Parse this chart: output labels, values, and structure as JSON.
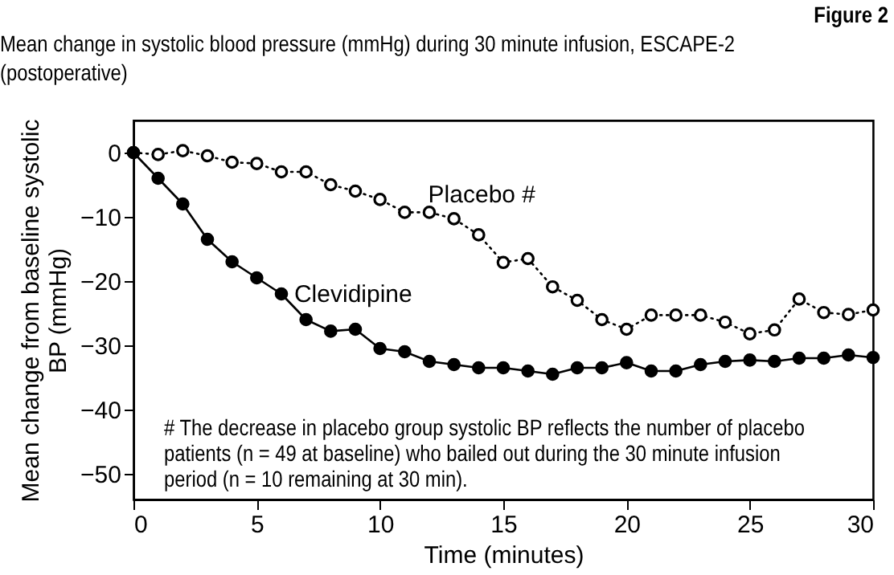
{
  "chart_data": {
    "type": "line",
    "title": "Figure 2",
    "subtitle": "Mean change in systolic blood pressure (mmHg) during 30 minute infusion, ESCAPE-2 (postoperative)",
    "xlabel": "Time (minutes)",
    "ylabel": "Mean change from baseline systolic BP (mmHg)",
    "x": [
      0,
      1,
      2,
      3,
      4,
      5,
      6,
      7,
      8,
      9,
      10,
      11,
      12,
      13,
      14,
      15,
      16,
      17,
      18,
      19,
      20,
      21,
      22,
      23,
      24,
      25,
      26,
      27,
      28,
      29,
      30
    ],
    "series": [
      {
        "name": "Placebo #",
        "color": "#000000",
        "line_style": "dotted",
        "values": [
          0,
          -0.3,
          0.3,
          -0.5,
          -1.5,
          -1.7,
          -3,
          -3,
          -5,
          -6,
          -7.3,
          -9.3,
          -9.3,
          -10.3,
          -12.8,
          -17.1,
          -16.5,
          -20.9,
          -23,
          -26,
          -27.5,
          -25.3,
          -25.3,
          -25.3,
          -26.4,
          -28.2,
          -27.6,
          -22.8,
          -24.9,
          -25.2,
          -24.5
        ]
      },
      {
        "name": "Clevidipine",
        "color": "#000000",
        "line_style": "solid",
        "values": [
          0,
          -4,
          -8,
          -13.5,
          -17,
          -19.5,
          -22,
          -26,
          -27.8,
          -27.5,
          -30.5,
          -31,
          -32.5,
          -33,
          -33.5,
          -33.5,
          -34,
          -34.5,
          -33.5,
          -33.5,
          -32.7,
          -34,
          -34,
          -33,
          -32.5,
          -32.3,
          -32.5,
          -32,
          -32,
          -31.5,
          -31.9
        ]
      }
    ],
    "xlim": [
      0,
      30
    ],
    "xticks": [
      0,
      5,
      10,
      15,
      20,
      25,
      30
    ],
    "ylim": [
      -54,
      5
    ],
    "yticks": [
      0,
      -10,
      -20,
      -30,
      -40,
      -50
    ],
    "marker": "circle",
    "grid": false,
    "annotations": [
      "# The decrease in placebo group systolic BP reflects the number of placebo patients (n = 49 at baseline) who bailed out during the 30 minute infusion period (n = 10 remaining at 30 min)."
    ]
  }
}
